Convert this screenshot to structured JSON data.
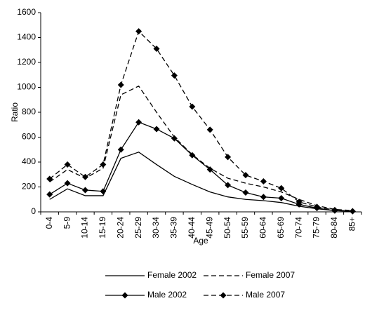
{
  "chart_data": {
    "type": "line",
    "x_label": "Age",
    "y_label": "Ratio",
    "categories": [
      "0-4",
      "5-9",
      "10-14",
      "15-19",
      "20-24",
      "25-29",
      "30-34",
      "35-39",
      "40-44",
      "45-49",
      "50-54",
      "55-59",
      "60-64",
      "65-69",
      "70-74",
      "75-79",
      "80-84",
      "85+"
    ],
    "series": [
      {
        "name": "Female 2002",
        "color": "#000000",
        "dash": false,
        "marker": false,
        "values": [
          100,
          185,
          130,
          130,
          430,
          480,
          380,
          285,
          220,
          160,
          120,
          100,
          90,
          75,
          45,
          25,
          10,
          5
        ]
      },
      {
        "name": "Female 2007",
        "color": "#000000",
        "dash": true,
        "marker": false,
        "values": [
          240,
          340,
          270,
          350,
          940,
          1010,
          800,
          600,
          460,
          350,
          270,
          230,
          200,
          160,
          100,
          50,
          20,
          10
        ]
      },
      {
        "name": "Male 2002",
        "color": "#000000",
        "dash": false,
        "marker": true,
        "values": [
          140,
          230,
          175,
          165,
          500,
          720,
          665,
          590,
          455,
          340,
          215,
          155,
          120,
          110,
          60,
          30,
          10,
          5
        ]
      },
      {
        "name": "Male 2007",
        "color": "#000000",
        "dash": true,
        "marker": true,
        "values": [
          265,
          380,
          280,
          380,
          1020,
          1450,
          1310,
          1095,
          845,
          660,
          440,
          295,
          245,
          190,
          80,
          40,
          15,
          5
        ]
      }
    ],
    "ylim": [
      0,
      1600
    ],
    "yticks": [
      0,
      200,
      400,
      600,
      800,
      1000,
      1200,
      1400,
      1600
    ],
    "grid": false,
    "legend": "bottom"
  }
}
